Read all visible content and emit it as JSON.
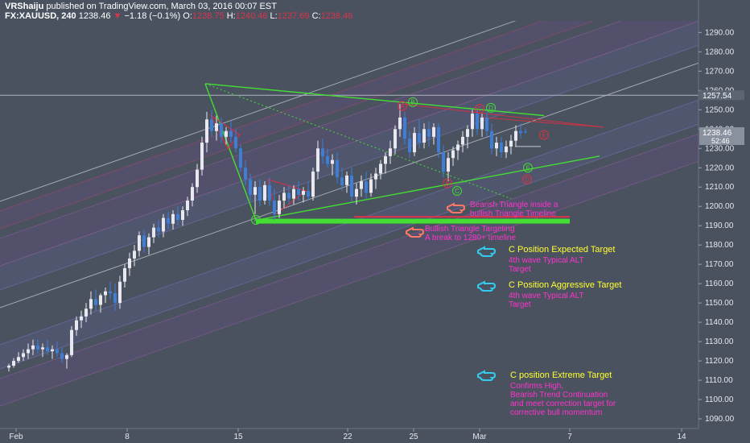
{
  "header": {
    "author": "VRShaiju",
    "published": "published on TradingView.com, March 03, 2016 00:07 EST",
    "symbol": "FX:XAUUSD, 240",
    "last": "1238.46",
    "arrow": "▼",
    "change": "−1.18 (−0.1%)",
    "o_label": "O:",
    "o": "1238.75",
    "h_label": "H:",
    "h": "1240.46",
    "l_label": "L:",
    "l": "1237.69",
    "c_label": "C:",
    "c": "1238.46"
  },
  "colors": {
    "background": "#4a5260",
    "price_badge": "#5c6573",
    "current_badge": "#8a919e",
    "triangle_green": "#44dd33",
    "red_line": "#cc3344",
    "annotation_magenta": "#ff33cc",
    "annotation_yellow": "#ffff33",
    "pointer_cyan": "#33ccee",
    "pointer_salmon": "#ff7766"
  },
  "chart_data": {
    "type": "candlestick",
    "ylim": [
      1085,
      1296
    ],
    "xlim": [
      0,
      924
    ],
    "y_ticks": [
      "1290.00",
      "1280.00",
      "1270.00",
      "1260.00",
      "1250.00",
      "1240.00",
      "1230.00",
      "1220.00",
      "1210.00",
      "1200.00",
      "1190.00",
      "1180.00",
      "1170.00",
      "1160.00",
      "1150.00",
      "1140.00",
      "1130.00",
      "1120.00",
      "1110.00",
      "1100.00",
      "1090.00"
    ],
    "x_ticks": [
      {
        "label": "Feb",
        "x": 20
      },
      {
        "label": "8",
        "x": 158
      },
      {
        "label": "15",
        "x": 296
      },
      {
        "label": "22",
        "x": 432
      },
      {
        "label": "25",
        "x": 514
      },
      {
        "label": "Mar",
        "x": 596
      },
      {
        "label": "7",
        "x": 708
      },
      {
        "label": "14",
        "x": 847
      }
    ],
    "price_labels": {
      "top": "1257.54",
      "current": "1238.46",
      "countdown": "52:46"
    },
    "series": [
      {
        "x": 11,
        "y": [
          1116.5,
          1118.5,
          1114.5,
          1117.5
        ]
      },
      {
        "x": 17,
        "y": [
          1117.5,
          1121.5,
          1116.5,
          1120
        ]
      },
      {
        "x": 23,
        "y": [
          1120,
          1124.5,
          1119,
          1122
        ]
      },
      {
        "x": 29,
        "y": [
          1122,
          1126,
          1120,
          1124
        ]
      },
      {
        "x": 35,
        "y": [
          1124,
          1129,
          1121,
          1126
        ]
      },
      {
        "x": 41,
        "y": [
          1126,
          1131,
          1123,
          1128
        ]
      },
      {
        "x": 47,
        "y": [
          1128,
          1131,
          1124,
          1126
        ]
      },
      {
        "x": 53,
        "y": [
          1126,
          1129,
          1122,
          1127
        ]
      },
      {
        "x": 59,
        "y": [
          1127,
          1131,
          1123,
          1125
        ]
      },
      {
        "x": 65,
        "y": [
          1125,
          1128,
          1121,
          1126
        ]
      },
      {
        "x": 71,
        "y": [
          1126,
          1130,
          1122,
          1124
        ]
      },
      {
        "x": 77,
        "y": [
          1124,
          1127,
          1119,
          1121
        ]
      },
      {
        "x": 83,
        "y": [
          1121,
          1124,
          1116,
          1123
        ]
      },
      {
        "x": 89,
        "y": [
          1123,
          1138,
          1122,
          1136
        ]
      },
      {
        "x": 95,
        "y": [
          1136,
          1143,
          1133,
          1141
        ]
      },
      {
        "x": 101,
        "y": [
          1141,
          1146,
          1137,
          1143
        ]
      },
      {
        "x": 107,
        "y": [
          1143,
          1150,
          1140,
          1147
        ]
      },
      {
        "x": 113,
        "y": [
          1147,
          1156,
          1144,
          1152
        ]
      },
      {
        "x": 119,
        "y": [
          1152,
          1157,
          1146,
          1149
        ]
      },
      {
        "x": 125,
        "y": [
          1149,
          1155,
          1145,
          1154
        ]
      },
      {
        "x": 131,
        "y": [
          1154,
          1158,
          1150,
          1156
        ]
      },
      {
        "x": 137,
        "y": [
          1156,
          1161,
          1152,
          1155
        ]
      },
      {
        "x": 143,
        "y": [
          1155,
          1160,
          1146,
          1150
        ]
      },
      {
        "x": 149,
        "y": [
          1150,
          1164,
          1147,
          1161
        ]
      },
      {
        "x": 155,
        "y": [
          1161,
          1170,
          1158,
          1168
        ]
      },
      {
        "x": 161,
        "y": [
          1168,
          1176,
          1164,
          1173
        ]
      },
      {
        "x": 167,
        "y": [
          1173,
          1180,
          1169,
          1177
        ]
      },
      {
        "x": 173,
        "y": [
          1177,
          1187,
          1174,
          1185
        ]
      },
      {
        "x": 179,
        "y": [
          1185,
          1188,
          1176,
          1179
        ]
      },
      {
        "x": 185,
        "y": [
          1179,
          1186,
          1175,
          1184
        ]
      },
      {
        "x": 191,
        "y": [
          1184,
          1191,
          1181,
          1189
        ]
      },
      {
        "x": 197,
        "y": [
          1189,
          1193,
          1184,
          1187
        ]
      },
      {
        "x": 203,
        "y": [
          1187,
          1196,
          1184,
          1194
        ]
      },
      {
        "x": 209,
        "y": [
          1194,
          1197,
          1188,
          1191
        ]
      },
      {
        "x": 215,
        "y": [
          1191,
          1198,
          1188,
          1196
        ]
      },
      {
        "x": 221,
        "y": [
          1196,
          1200,
          1190,
          1193
        ]
      },
      {
        "x": 227,
        "y": [
          1193,
          1200,
          1190,
          1198
        ]
      },
      {
        "x": 233,
        "y": [
          1198,
          1205,
          1195,
          1203
        ]
      },
      {
        "x": 239,
        "y": [
          1203,
          1212,
          1200,
          1210
        ]
      },
      {
        "x": 245,
        "y": [
          1210,
          1222,
          1207,
          1219
        ]
      },
      {
        "x": 251,
        "y": [
          1219,
          1236,
          1216,
          1233
        ]
      },
      {
        "x": 257,
        "y": [
          1233,
          1249,
          1228,
          1245
        ]
      },
      {
        "x": 263,
        "y": [
          1245,
          1250,
          1236,
          1239
        ]
      },
      {
        "x": 269,
        "y": [
          1239,
          1247,
          1234,
          1243
        ]
      },
      {
        "x": 275,
        "y": [
          1243,
          1246,
          1233,
          1236
        ]
      },
      {
        "x": 281,
        "y": [
          1236,
          1241,
          1232,
          1239
        ]
      },
      {
        "x": 287,
        "y": [
          1239,
          1244,
          1233,
          1236
        ]
      },
      {
        "x": 293,
        "y": [
          1236,
          1240,
          1228,
          1230
        ]
      },
      {
        "x": 299,
        "y": [
          1230,
          1232,
          1218,
          1220
        ]
      },
      {
        "x": 305,
        "y": [
          1220,
          1224,
          1211,
          1214
        ]
      },
      {
        "x": 311,
        "y": [
          1214,
          1217,
          1203,
          1206
        ]
      },
      {
        "x": 317,
        "y": [
          1206,
          1213,
          1196,
          1210
        ]
      },
      {
        "x": 323,
        "y": [
          1210,
          1214,
          1200,
          1203
        ]
      },
      {
        "x": 329,
        "y": [
          1203,
          1213,
          1201,
          1211
        ]
      },
      {
        "x": 335,
        "y": [
          1211,
          1215,
          1200,
          1203
        ]
      },
      {
        "x": 341,
        "y": [
          1203,
          1209,
          1193,
          1196
        ]
      },
      {
        "x": 347,
        "y": [
          1196,
          1206,
          1194,
          1203
        ]
      },
      {
        "x": 353,
        "y": [
          1203,
          1210,
          1199,
          1207
        ]
      },
      {
        "x": 359,
        "y": [
          1207,
          1211,
          1201,
          1204
        ]
      },
      {
        "x": 365,
        "y": [
          1204,
          1211,
          1201,
          1209
        ]
      },
      {
        "x": 371,
        "y": [
          1209,
          1213,
          1203,
          1206
        ]
      },
      {
        "x": 377,
        "y": [
          1206,
          1210,
          1202,
          1208
        ]
      },
      {
        "x": 383,
        "y": [
          1208,
          1213,
          1203,
          1205
        ]
      },
      {
        "x": 389,
        "y": [
          1205,
          1220,
          1203,
          1218
        ]
      },
      {
        "x": 395,
        "y": [
          1218,
          1234,
          1214,
          1230
        ]
      },
      {
        "x": 401,
        "y": [
          1230,
          1235,
          1222,
          1226
        ]
      },
      {
        "x": 407,
        "y": [
          1226,
          1230,
          1220,
          1222
        ]
      },
      {
        "x": 413,
        "y": [
          1222,
          1227,
          1216,
          1224
        ]
      },
      {
        "x": 419,
        "y": [
          1224,
          1228,
          1212,
          1215
        ]
      },
      {
        "x": 425,
        "y": [
          1215,
          1220,
          1208,
          1211
        ]
      },
      {
        "x": 431,
        "y": [
          1211,
          1218,
          1207,
          1216
        ]
      },
      {
        "x": 437,
        "y": [
          1216,
          1220,
          1202,
          1205
        ]
      },
      {
        "x": 443,
        "y": [
          1205,
          1212,
          1201,
          1209
        ]
      },
      {
        "x": 449,
        "y": [
          1209,
          1216,
          1205,
          1213
        ]
      },
      {
        "x": 455,
        "y": [
          1213,
          1218,
          1204,
          1207
        ]
      },
      {
        "x": 461,
        "y": [
          1207,
          1217,
          1205,
          1214
        ]
      },
      {
        "x": 467,
        "y": [
          1214,
          1220,
          1209,
          1217
        ]
      },
      {
        "x": 473,
        "y": [
          1217,
          1224,
          1214,
          1222
        ]
      },
      {
        "x": 479,
        "y": [
          1222,
          1228,
          1217,
          1226
        ]
      },
      {
        "x": 485,
        "y": [
          1226,
          1234,
          1222,
          1230
        ]
      },
      {
        "x": 491,
        "y": [
          1230,
          1242,
          1227,
          1240
        ]
      },
      {
        "x": 497,
        "y": [
          1240,
          1253,
          1236,
          1246
        ]
      },
      {
        "x": 503,
        "y": [
          1246,
          1249,
          1232,
          1235
        ]
      },
      {
        "x": 509,
        "y": [
          1235,
          1239,
          1225,
          1228
        ]
      },
      {
        "x": 515,
        "y": [
          1228,
          1241,
          1226,
          1238
        ]
      },
      {
        "x": 521,
        "y": [
          1238,
          1245,
          1230,
          1233
        ]
      },
      {
        "x": 527,
        "y": [
          1233,
          1243,
          1230,
          1240
        ]
      },
      {
        "x": 533,
        "y": [
          1240,
          1244,
          1231,
          1236
        ]
      },
      {
        "x": 539,
        "y": [
          1236,
          1243,
          1232,
          1241
        ]
      },
      {
        "x": 545,
        "y": [
          1241,
          1243,
          1225,
          1228
        ]
      },
      {
        "x": 551,
        "y": [
          1228,
          1232,
          1215,
          1218
        ]
      },
      {
        "x": 557,
        "y": [
          1218,
          1228,
          1213,
          1225
        ]
      },
      {
        "x": 563,
        "y": [
          1225,
          1231,
          1221,
          1229
        ]
      },
      {
        "x": 569,
        "y": [
          1229,
          1234,
          1224,
          1232
        ]
      },
      {
        "x": 575,
        "y": [
          1232,
          1239,
          1228,
          1236
        ]
      },
      {
        "x": 581,
        "y": [
          1236,
          1242,
          1230,
          1240
        ]
      },
      {
        "x": 587,
        "y": [
          1240,
          1250,
          1236,
          1248
        ]
      },
      {
        "x": 593,
        "y": [
          1248,
          1250,
          1237,
          1240
        ]
      },
      {
        "x": 599,
        "y": [
          1240,
          1248,
          1236,
          1246
        ]
      },
      {
        "x": 605,
        "y": [
          1246,
          1249,
          1236,
          1239
        ]
      },
      {
        "x": 611,
        "y": [
          1239,
          1243,
          1227,
          1230
        ]
      },
      {
        "x": 617,
        "y": [
          1230,
          1236,
          1226,
          1233
        ]
      },
      {
        "x": 623,
        "y": [
          1233,
          1236,
          1225,
          1228
        ]
      },
      {
        "x": 629,
        "y": [
          1228,
          1234,
          1225,
          1231
        ]
      },
      {
        "x": 635,
        "y": [
          1231,
          1237,
          1227,
          1234
        ]
      },
      {
        "x": 641,
        "y": [
          1234,
          1242,
          1231,
          1239
        ]
      },
      {
        "x": 647,
        "y": [
          1239,
          1243,
          1235,
          1238
        ]
      },
      {
        "x": 653,
        "y": [
          1238.75,
          1240.46,
          1237.69,
          1238.46
        ]
      }
    ],
    "wave_labels": [
      {
        "text": "A",
        "x": 318,
        "y": 1193,
        "color": "#44dd33"
      },
      {
        "text": "A",
        "x": 500,
        "y": 1252,
        "color": "#dd3344"
      },
      {
        "text": "B",
        "x": 513,
        "y": 1254,
        "color": "#44dd33"
      },
      {
        "text": "B",
        "x": 556,
        "y": 1212,
        "color": "#dd3344"
      },
      {
        "text": "C",
        "x": 568,
        "y": 1208,
        "color": "#44dd33"
      },
      {
        "text": "C",
        "x": 596,
        "y": 1250.5,
        "color": "#dd3344"
      },
      {
        "text": "D",
        "x": 610,
        "y": 1251,
        "color": "#44dd33"
      },
      {
        "text": "D",
        "x": 655,
        "y": 1214,
        "color": "#dd3344"
      },
      {
        "text": "E",
        "x": 656,
        "y": 1220,
        "color": "#44dd33"
      },
      {
        "text": "E",
        "x": 676,
        "y": 1237,
        "color": "#dd3344"
      }
    ],
    "annotations": [
      {
        "id": "bearish",
        "icon": "pointer-salmon",
        "text": "Bearish Triangle inside a\nbullish Triangle Timeline",
        "color": "#ff33cc"
      },
      {
        "id": "bullish",
        "icon": "pointer-salmon",
        "text": "Bullish Triangle Targeting\nA break to 1280+ timeline",
        "color": "#ff33cc"
      },
      {
        "id": "expected",
        "icon": "pointer-cyan",
        "title": "C Position Expected Target",
        "sub": "4th wave Typical ALT\nTarget"
      },
      {
        "id": "aggressive",
        "icon": "pointer-cyan",
        "title": "C Position Aggressive Target",
        "sub": "4th wave Typical ALT\nTarget"
      },
      {
        "id": "extreme",
        "icon": "pointer-cyan",
        "title": "C position Extreme Target",
        "sub": "Confirms High,\nBearish Trend Continuation\nand meet correction target for\ncorrective bull momentum"
      }
    ]
  }
}
